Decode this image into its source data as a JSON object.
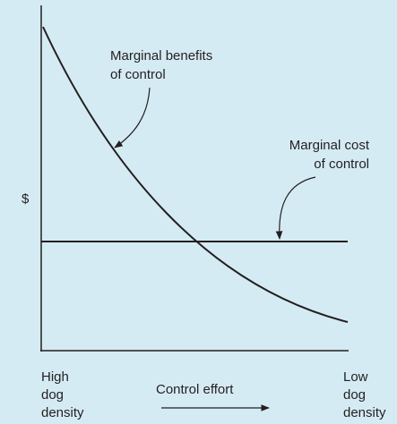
{
  "y_axis_label": "$",
  "benefit_label": [
    "Marginal benefits",
    "of control"
  ],
  "cost_label": [
    "Marginal cost",
    "of control"
  ],
  "x_left_label": [
    "High",
    "dog",
    "density"
  ],
  "x_right_label": [
    "Low",
    "dog",
    "density"
  ],
  "x_axis_label": "Control effort"
}
